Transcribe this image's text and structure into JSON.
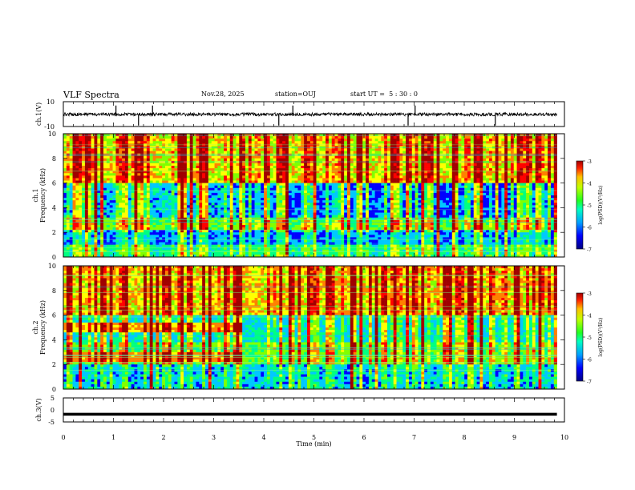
{
  "header": {
    "title": "VLF Spectra",
    "date": "Nov.28, 2025",
    "station": "station=OUJ",
    "start_ut": "start UT =  5 : 30 : 0"
  },
  "chart_data": [
    {
      "type": "line",
      "panel": "ch1_waveform",
      "ylabel": "ch.1(V)",
      "ylim": [
        -10,
        10
      ],
      "yticks": [
        "10",
        "-10"
      ],
      "xlim": [
        0,
        10
      ],
      "series": [
        {
          "values_note": "noise around",
          "baseline": -0.2
        }
      ],
      "spikes_at_min": [
        1.05,
        1.5,
        1.78,
        4.3,
        4.58,
        6.88,
        7.02,
        8.62
      ],
      "grid": false
    },
    {
      "type": "heatmap",
      "panel": "ch1_spectrogram",
      "ylabel": "ch.1\nFrequency (kHz)",
      "ylim": [
        0,
        10
      ],
      "yticks": [
        "0",
        "2",
        "4",
        "6",
        "8",
        "10"
      ],
      "xlim": [
        0,
        9.85
      ],
      "colorbar": {
        "label": "log(PSD)(V²/Hz)",
        "range": [
          -7,
          -3
        ],
        "ticks": [
          "-3",
          "-4",
          "-5",
          "-6",
          "-7"
        ]
      }
    },
    {
      "type": "heatmap",
      "panel": "ch2_spectrogram",
      "ylabel": "ch.2\nFrequency (kHz)",
      "ylim": [
        0,
        10
      ],
      "yticks": [
        "0",
        "2",
        "4",
        "6",
        "8",
        "10"
      ],
      "xlim": [
        0,
        9.85
      ],
      "colorbar": {
        "label": "log(PSD)(V²/Hz)",
        "range": [
          -7,
          -3
        ],
        "ticks": [
          "-3",
          "-4",
          "-5",
          "-6",
          "-7"
        ]
      }
    },
    {
      "type": "line",
      "panel": "ch3_waveform",
      "ylabel": "ch.3(V)",
      "ylim": [
        -5,
        5
      ],
      "yticks": [
        "5",
        "0",
        "-5"
      ],
      "xlim": [
        0,
        10
      ],
      "series": [
        {
          "baseline": -1.8
        }
      ]
    }
  ],
  "xaxis": {
    "label": "Time (min)",
    "ticks": [
      "0",
      "1",
      "2",
      "3",
      "4",
      "5",
      "6",
      "7",
      "8",
      "9",
      "10"
    ]
  },
  "colors": {
    "colormap": [
      "#0000a0",
      "#0000ff",
      "#00c8ff",
      "#00ff80",
      "#80ff00",
      "#ffff00",
      "#ff8000",
      "#ff0000",
      "#a00000"
    ]
  }
}
